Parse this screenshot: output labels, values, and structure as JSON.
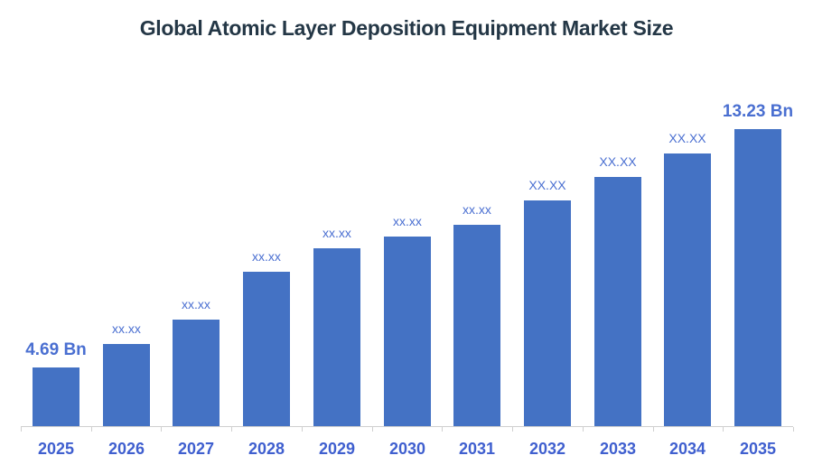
{
  "chart_data": {
    "type": "bar",
    "title": "Global Atomic Layer Deposition Equipment Market Size",
    "xlabel": "",
    "ylabel": "",
    "unit": "Bn",
    "categories": [
      "2025",
      "2026",
      "2027",
      "2028",
      "2029",
      "2030",
      "2031",
      "2032",
      "2033",
      "2034",
      "2035"
    ],
    "values": [
      4.69,
      5.52,
      6.39,
      8.11,
      8.95,
      9.37,
      9.79,
      10.67,
      11.51,
      12.35,
      13.23
    ],
    "data_labels": [
      "4.69 Bn",
      "xx.xx",
      "xx.xx",
      "xx.xx",
      "xx.xx",
      "xx.xx",
      "xx.xx",
      "XX.XX",
      "XX.XX",
      "XX.XX",
      "13.23 Bn"
    ],
    "bar_color": "#4472c4",
    "label_color": "#4a6fd1",
    "grid": false,
    "legend": null
  },
  "title": "Global Atomic Layer Deposition Equipment Market Size"
}
